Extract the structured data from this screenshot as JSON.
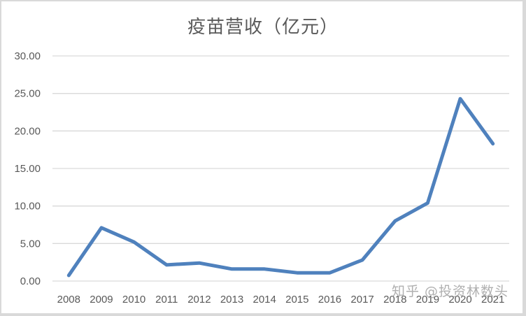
{
  "chart_data": {
    "type": "line",
    "title": "疫苗营收（亿元）",
    "xlabel": "",
    "ylabel": "",
    "ylim": [
      0,
      30
    ],
    "yticks": [
      "0.00",
      "5.00",
      "10.00",
      "15.00",
      "20.00",
      "25.00",
      "30.00"
    ],
    "grid": true,
    "legend": null,
    "categories": [
      "2008",
      "2009",
      "2010",
      "2011",
      "2012",
      "2013",
      "2014",
      "2015",
      "2016",
      "2017",
      "2018",
      "2019",
      "2020",
      "2021"
    ],
    "series": [
      {
        "name": "疫苗营收",
        "color": "#4f81bd",
        "values": [
          0.75,
          7.1,
          5.2,
          2.15,
          2.4,
          1.6,
          1.6,
          1.1,
          1.1,
          2.8,
          8.0,
          10.4,
          24.3,
          18.3
        ]
      }
    ]
  },
  "watermark": "知乎 @投资林数头"
}
